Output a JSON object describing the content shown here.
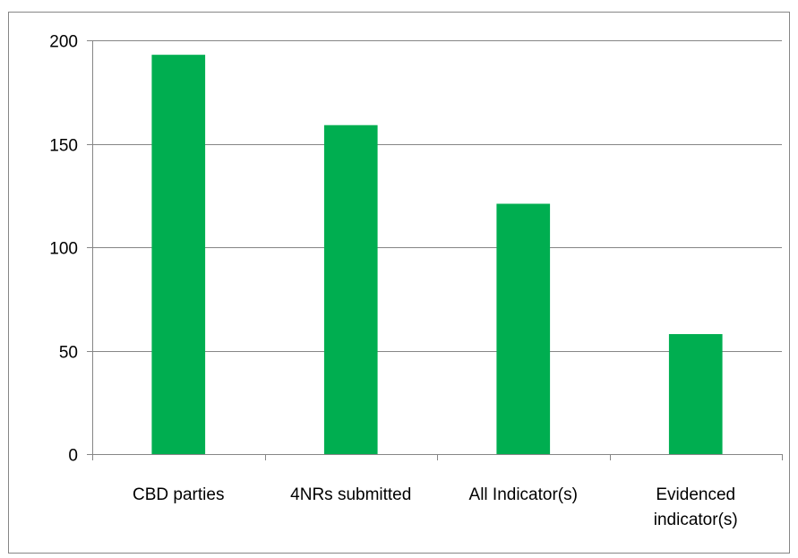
{
  "chart_data": {
    "type": "bar",
    "title": "",
    "xlabel": "",
    "ylabel": "",
    "categories": [
      [
        "CBD parties"
      ],
      [
        "4NRs submitted"
      ],
      [
        "All Indicator(s)"
      ],
      [
        "Evidenced",
        "indicator(s)"
      ]
    ],
    "values": [
      193,
      159,
      121,
      58
    ],
    "ylim": [
      0,
      200
    ],
    "yticks": [
      0,
      50,
      100,
      150,
      200
    ],
    "grid": true,
    "legend": "none",
    "colors": {
      "bar": "#00AE50",
      "grid": "#868686",
      "axis": "#868686",
      "frame": "#868686",
      "background": "#ffffff"
    }
  }
}
